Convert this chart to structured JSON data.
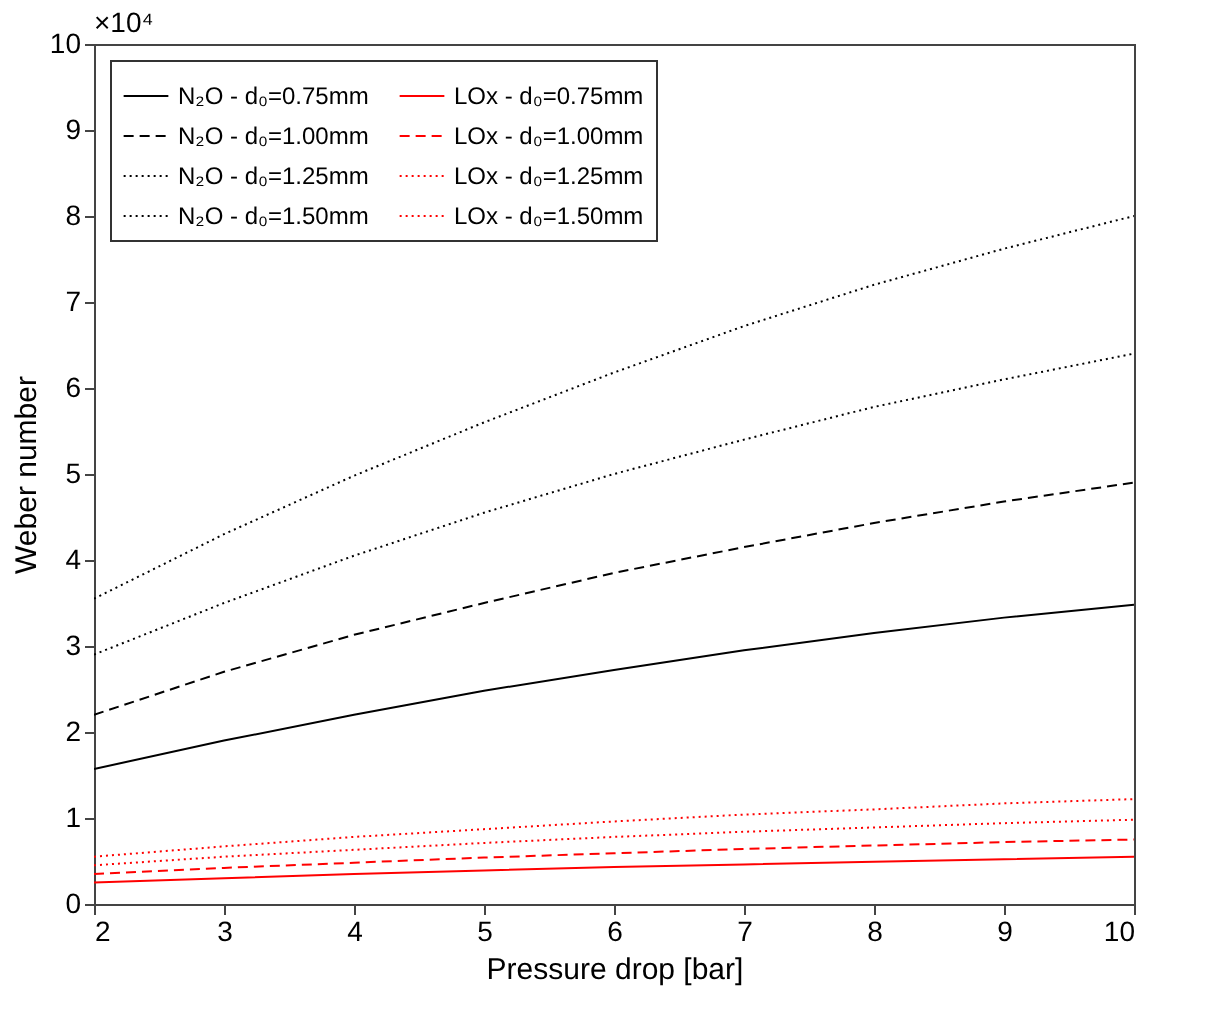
{
  "chart_data": {
    "type": "line",
    "xlabel": "Pressure drop [bar]",
    "ylabel": "Weber number",
    "x": [
      2,
      3,
      4,
      5,
      6,
      7,
      8,
      9,
      10
    ],
    "xlim": [
      2,
      10
    ],
    "xticks": [
      2,
      3,
      4,
      5,
      6,
      7,
      8,
      9,
      10
    ],
    "ylim": [
      0,
      10
    ],
    "yticks": [
      0,
      1,
      2,
      3,
      4,
      5,
      6,
      7,
      8,
      9,
      10
    ],
    "annotations": [
      "×10⁴"
    ],
    "grid": false,
    "legend": "top left",
    "marker": "none",
    "series": [
      {
        "name": "N₂O - d₀=0.75mm",
        "color": "#000000",
        "line_style": "solid",
        "values": [
          1.57,
          1.9,
          2.2,
          2.48,
          2.72,
          2.95,
          3.15,
          3.33,
          3.48
        ]
      },
      {
        "name": "N₂O - d₀=1.00mm",
        "color": "#000000",
        "line_style": "dashed",
        "values": [
          2.2,
          2.7,
          3.13,
          3.5,
          3.85,
          4.15,
          4.43,
          4.68,
          4.9
        ]
      },
      {
        "name": "N₂O - d₀=1.25mm",
        "color": "#000000",
        "line_style": "dotted",
        "values": [
          2.9,
          3.5,
          4.05,
          4.55,
          5.0,
          5.4,
          5.78,
          6.1,
          6.4
        ]
      },
      {
        "name": "N₂O - d₀=1.50mm",
        "color": "#000000",
        "line_style": "dotted",
        "values": [
          3.55,
          4.3,
          4.98,
          5.6,
          6.18,
          6.72,
          7.2,
          7.62,
          8.0
        ]
      },
      {
        "name": "LOx - d₀=0.75mm",
        "color": "#ff0000",
        "line_style": "solid",
        "values": [
          0.25,
          0.3,
          0.35,
          0.39,
          0.43,
          0.46,
          0.49,
          0.52,
          0.55
        ]
      },
      {
        "name": "LOx - d₀=1.00mm",
        "color": "#ff0000",
        "line_style": "dashed",
        "values": [
          0.35,
          0.42,
          0.48,
          0.54,
          0.59,
          0.64,
          0.68,
          0.72,
          0.75
        ]
      },
      {
        "name": "LOx - d₀=1.25mm",
        "color": "#ff0000",
        "line_style": "dotted",
        "values": [
          0.45,
          0.55,
          0.63,
          0.71,
          0.78,
          0.84,
          0.89,
          0.94,
          0.98
        ]
      },
      {
        "name": "LOx - d₀=1.50mm",
        "color": "#ff0000",
        "line_style": "dotted",
        "values": [
          0.55,
          0.67,
          0.78,
          0.87,
          0.96,
          1.04,
          1.1,
          1.17,
          1.22
        ]
      }
    ]
  }
}
